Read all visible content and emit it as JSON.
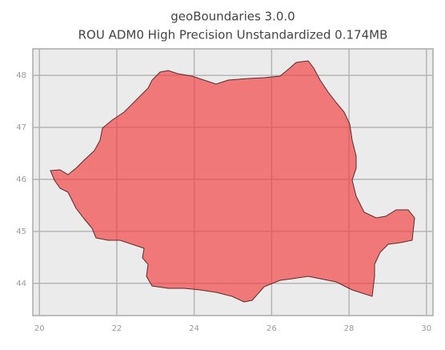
{
  "chart_data": {
    "type": "map",
    "title": "geoBoundaries 3.0.0",
    "subtitle": "ROU ADM0 High Precision Unstandardized 0.174MB",
    "xlim": [
      19.83,
      30.17
    ],
    "xticks": [
      20,
      22,
      24,
      26,
      28,
      30
    ],
    "ylim": [
      43.38,
      48.51
    ],
    "yticks": [
      44,
      45,
      46,
      47,
      48
    ],
    "grid": true,
    "color": "#f23a3a"
  }
}
